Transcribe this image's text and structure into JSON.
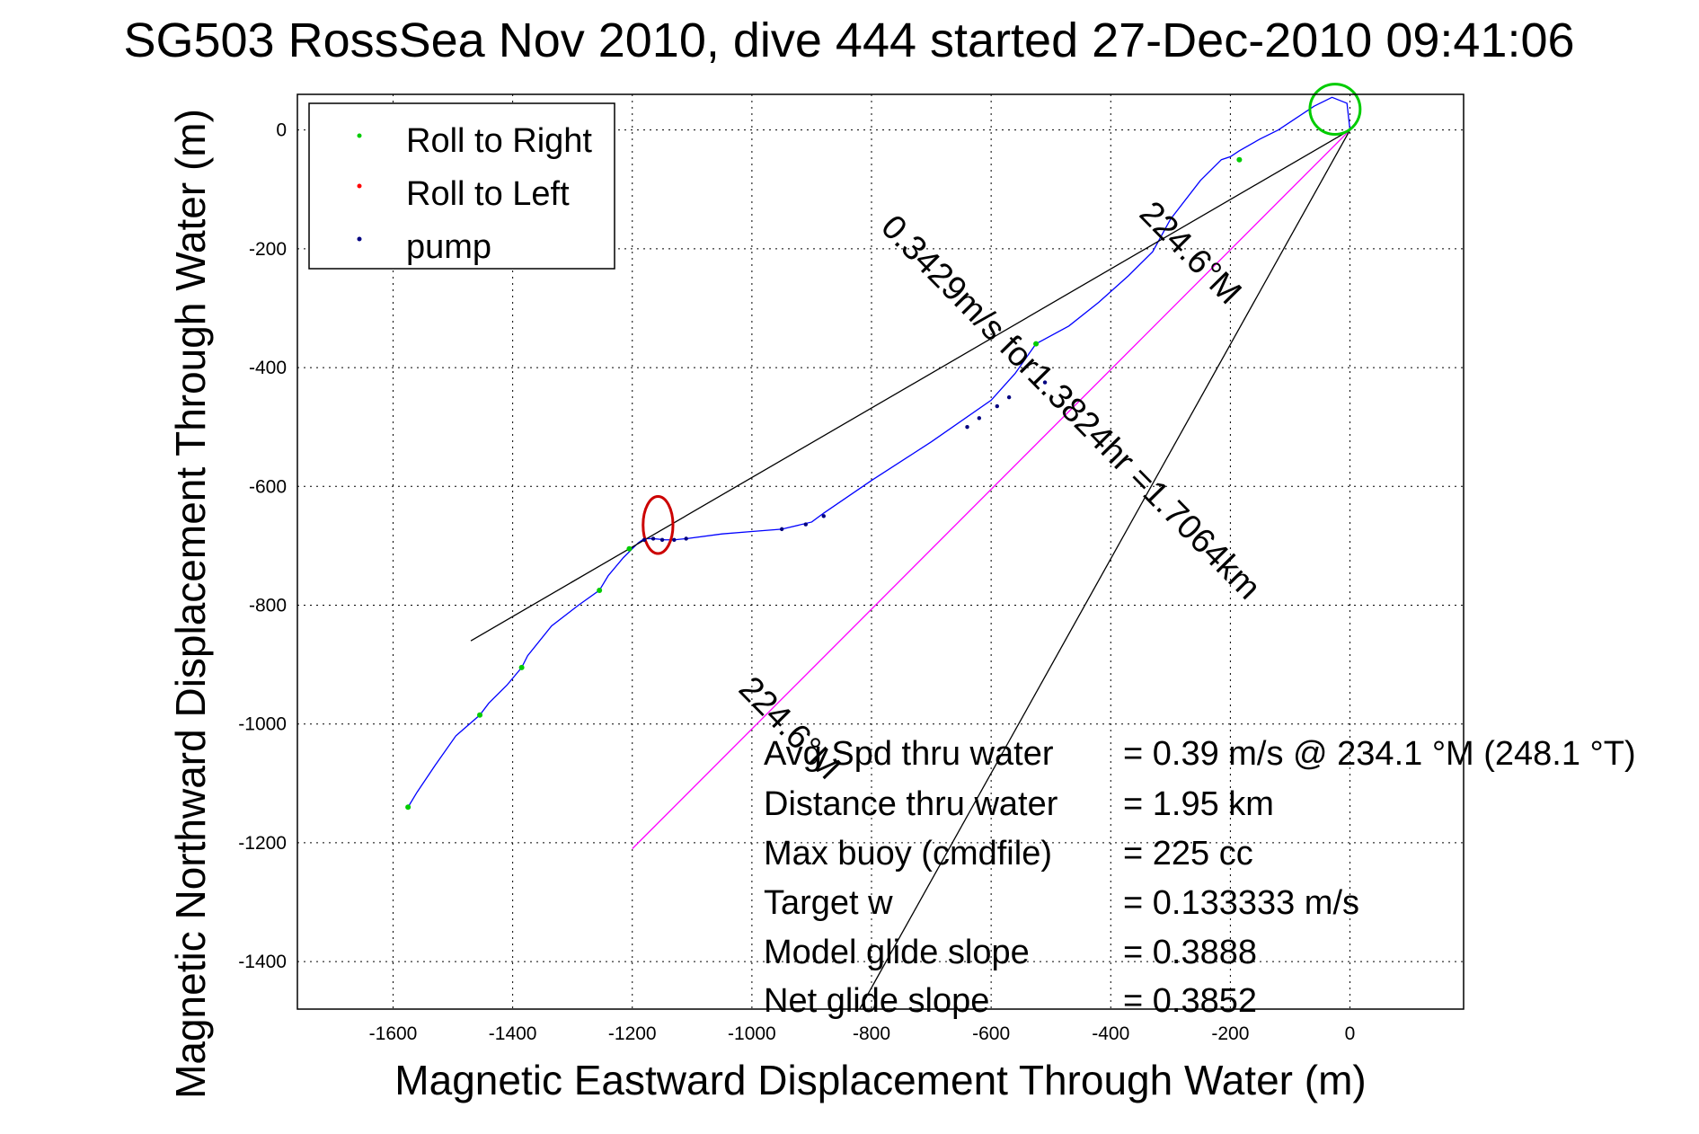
{
  "chart_data": {
    "type": "line",
    "title": "SG503 RossSea Nov 2010, dive 444 started 27-Dec-2010 09:41:06",
    "xlabel": "Magnetic Eastward Displacement Through Water (m)",
    "ylabel": "Magnetic Northward Displacement Through Water (m)",
    "xlim": [
      -1760,
      190
    ],
    "ylim": [
      -1480,
      60
    ],
    "xticks": [
      -1600,
      -1400,
      -1200,
      -1000,
      -800,
      -600,
      -400,
      -200,
      0
    ],
    "yticks": [
      0,
      -200,
      -400,
      -600,
      -800,
      -1000,
      -1200,
      -1400
    ],
    "grid": true,
    "legend_position": "top-left",
    "legend": [
      {
        "label": "Roll to Right",
        "color": "#00cc00"
      },
      {
        "label": "Roll to Left",
        "color": "#ff0000"
      },
      {
        "label": "pump",
        "color": "#000080"
      }
    ],
    "series": [
      {
        "color": "#0000ff",
        "x": [
          -1575,
          -1560,
          -1530,
          -1495,
          -1455,
          -1440,
          -1410,
          -1385,
          -1375,
          -1335,
          -1290,
          -1255,
          -1240,
          -1215,
          -1200,
          -1190,
          -1180,
          -1165,
          -1145,
          -1130,
          -1110,
          -1050,
          -1000,
          -950,
          -900,
          -880,
          -800,
          -700,
          -600,
          -560,
          -525,
          -470,
          -420,
          -370,
          -330,
          -300,
          -250,
          -215,
          -200,
          -185,
          -150,
          -120,
          -90,
          -60,
          -30,
          -5,
          0
        ],
        "y": [
          -1140,
          -1115,
          -1070,
          -1020,
          -985,
          -965,
          -935,
          -905,
          -885,
          -835,
          -800,
          -775,
          -750,
          -720,
          -705,
          -695,
          -688,
          -688,
          -690,
          -690,
          -688,
          -680,
          -676,
          -672,
          -660,
          -645,
          -590,
          -525,
          -455,
          -410,
          -360,
          -330,
          -290,
          -245,
          -205,
          -150,
          -85,
          -50,
          -45,
          -35,
          -15,
          0,
          20,
          40,
          55,
          45,
          0
        ]
      },
      {
        "color": "#ff00ff",
        "x": [
          -1200,
          0
        ],
        "y": [
          -1210,
          0
        ]
      },
      {
        "color": "#000000",
        "x": [
          -1470,
          0
        ],
        "y": [
          -860,
          0
        ]
      },
      {
        "color": "#000000",
        "x": [
          -820,
          0
        ],
        "y": [
          -1480,
          0
        ]
      }
    ],
    "markers": {
      "roll_to_right": [
        [
          -1575,
          -1140
        ],
        [
          -1455,
          -985
        ],
        [
          -1385,
          -905
        ],
        [
          -1255,
          -775
        ],
        [
          -1205,
          -705
        ],
        [
          -525,
          -360
        ],
        [
          -185,
          -50
        ]
      ],
      "roll_to_left_loop": {
        "cx": -1157,
        "cy": -665,
        "rx": 25,
        "ry": 48
      },
      "pump": [
        [
          -1180,
          -690
        ],
        [
          -1165,
          -688
        ],
        [
          -1150,
          -690
        ],
        [
          -1130,
          -690
        ],
        [
          -1110,
          -688
        ],
        [
          -950,
          -672
        ],
        [
          -910,
          -664
        ],
        [
          -880,
          -650
        ],
        [
          -640,
          -500
        ],
        [
          -620,
          -485
        ],
        [
          -590,
          -465
        ],
        [
          -570,
          -450
        ],
        [
          -510,
          -425
        ]
      ],
      "surface_loop": {
        "cx": -25,
        "cy": 35,
        "r": 42
      }
    },
    "annotations": [
      {
        "text": "0.3429m/s for1.3824hr =1.7064km",
        "x": -480,
        "y": -480,
        "angle": 225.4
      },
      {
        "text": "224.6°M",
        "x": -280,
        "y": -220,
        "angle": 225.4
      },
      {
        "text": "224.6°M",
        "x": -950,
        "y": -1020,
        "angle": 225.4
      }
    ],
    "stats": [
      {
        "label": "Avg Spd thru water",
        "value": "=  0.39 m/s @ 234.1 °M (248.1 °T)"
      },
      {
        "label": "Distance thru water",
        "value": "=  1.95 km"
      },
      {
        "label": "Max buoy (cmdfile)",
        "value": "= 225 cc"
      },
      {
        "label": "Target w",
        "value": "= 0.133333 m/s"
      },
      {
        "label": "Model glide slope",
        "value": "= 0.3888"
      },
      {
        "label": "Net glide slope",
        "value": "= 0.3852"
      }
    ]
  }
}
